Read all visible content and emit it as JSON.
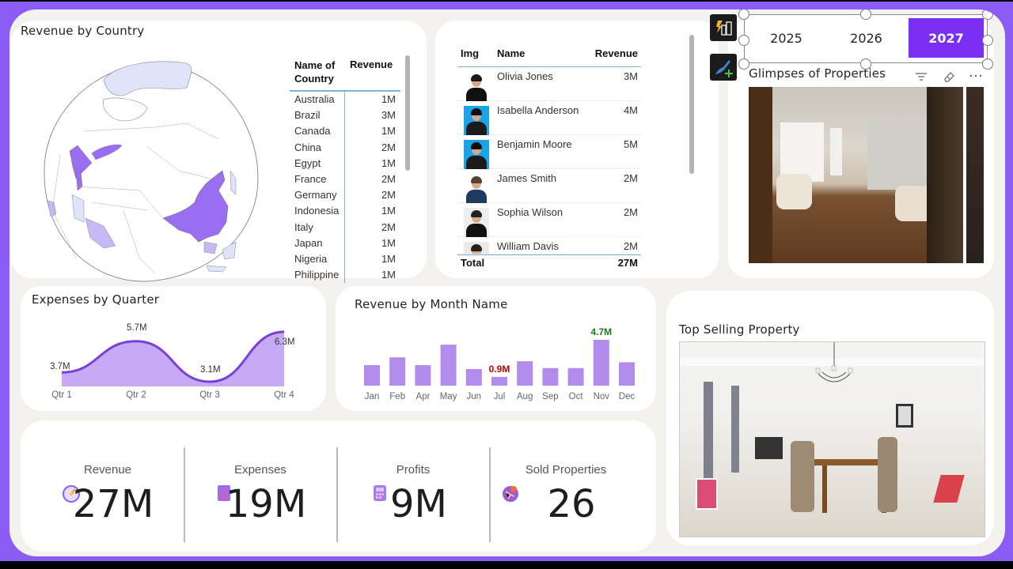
{
  "colors": {
    "frame": "#8b5cf6",
    "canvas": "#f3f2ee",
    "accent": "#7b2ff2",
    "area_fill": "#c7aaf5",
    "area_line": "#7a3fd6",
    "bar": "#b38bed",
    "map_high": "#9b6df0",
    "map_mid": "#c7b8f6",
    "map_low": "#dfe4fb",
    "label_low": "#c00000",
    "label_high": "#1a7f1a"
  },
  "revenue_by_country": {
    "title": "Revenue by Country",
    "table": {
      "headers": [
        "Name of Country",
        "Revenue"
      ],
      "header_line1": "Name of",
      "header_line2": "Country",
      "rows": [
        {
          "country": "Australia",
          "revenue": "1M"
        },
        {
          "country": "Brazil",
          "revenue": "3M"
        },
        {
          "country": "Canada",
          "revenue": "1M"
        },
        {
          "country": "China",
          "revenue": "2M"
        },
        {
          "country": "Egypt",
          "revenue": "1M"
        },
        {
          "country": "France",
          "revenue": "2M"
        },
        {
          "country": "Germany",
          "revenue": "2M"
        },
        {
          "country": "Indonesia",
          "revenue": "1M"
        },
        {
          "country": "Italy",
          "revenue": "2M"
        },
        {
          "country": "Japan",
          "revenue": "1M"
        },
        {
          "country": "Nigeria",
          "revenue": "1M"
        },
        {
          "country": "Philippine",
          "revenue": "1M"
        }
      ]
    }
  },
  "agents_table": {
    "headers": {
      "img": "Img",
      "name": "Name",
      "revenue": "Revenue"
    },
    "rows": [
      {
        "name": "Olivia Jones",
        "revenue": "3M",
        "avatar_bg": "#ffffff"
      },
      {
        "name": "Isabella Anderson",
        "revenue": "4M",
        "avatar_bg": "#1aa3e6"
      },
      {
        "name": "Benjamin Moore",
        "revenue": "5M",
        "avatar_bg": "#1aa3e6"
      },
      {
        "name": "James Smith",
        "revenue": "2M",
        "avatar_bg": "#ffffff"
      },
      {
        "name": "Sophia Wilson",
        "revenue": "2M",
        "avatar_bg": "#eeeeee"
      },
      {
        "name": "William Davis",
        "revenue": "2M",
        "avatar_bg": "#e9e9e9"
      }
    ],
    "total_label": "Total",
    "total_value": "27M"
  },
  "year_slicer": {
    "options": [
      "2025",
      "2026",
      "2027"
    ],
    "selected": "2027"
  },
  "toolbar_icons": [
    "quick-insights-icon",
    "format-painter-icon"
  ],
  "glimpses": {
    "title": "Glimpses of Properties",
    "header_icons": [
      "filter-icon",
      "eraser-icon",
      "more-options-icon"
    ]
  },
  "top_selling": {
    "title": "Top Selling Property"
  },
  "expenses_by_quarter": {
    "title": "Expenses by Quarter"
  },
  "revenue_by_month": {
    "title": "Revenue by Month Name"
  },
  "kpis": [
    {
      "label": "Revenue",
      "value": "27M",
      "icon": "stopwatch-icon"
    },
    {
      "label": "Expenses",
      "value": "19M",
      "icon": "contact-book-icon"
    },
    {
      "label": "Profits",
      "value": "9M",
      "icon": "calculator-icon"
    },
    {
      "label": "Sold Properties",
      "value": "26",
      "icon": "map-pin-globe-icon"
    }
  ],
  "chart_data": [
    {
      "type": "area",
      "title": "Expenses by Quarter",
      "categories": [
        "Qtr 1",
        "Qtr 2",
        "Qtr 3",
        "Qtr 4"
      ],
      "values": [
        3.7,
        5.7,
        3.1,
        6.3
      ],
      "data_labels": [
        "3.7M",
        "5.7M",
        "3.1M",
        "6.3M"
      ],
      "unit": "M",
      "xlabel": "",
      "ylabel": "",
      "grid": false,
      "smooth": true
    },
    {
      "type": "bar",
      "title": "Revenue by Month Name",
      "categories": [
        "Jan",
        "Feb",
        "Apr",
        "May",
        "Jun",
        "Jul",
        "Aug",
        "Sep",
        "Oct",
        "Nov",
        "Dec"
      ],
      "values": [
        2.1,
        2.9,
        2.1,
        4.2,
        1.7,
        0.9,
        2.5,
        1.8,
        1.8,
        4.7,
        2.4
      ],
      "data_labels": {
        "Jul": "0.9M",
        "Nov": "4.7M"
      },
      "unit": "M",
      "xlabel": "",
      "ylabel": "",
      "grid": false
    },
    {
      "type": "table",
      "title": "Revenue by Country",
      "categories": [
        "Australia",
        "Brazil",
        "Canada",
        "China",
        "Egypt",
        "France",
        "Germany",
        "Indonesia",
        "Italy",
        "Japan",
        "Nigeria",
        "Philippine"
      ],
      "values": [
        1,
        3,
        1,
        2,
        1,
        2,
        2,
        1,
        2,
        1,
        1,
        1
      ],
      "unit": "M"
    }
  ]
}
